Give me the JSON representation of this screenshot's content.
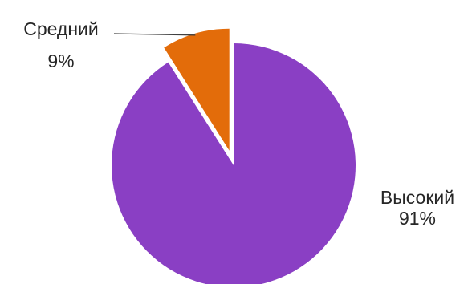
{
  "chart_data": {
    "type": "pie",
    "title": "",
    "legend": "none",
    "slices": [
      {
        "label": "Высокий",
        "value": 91,
        "percent_label": "91%",
        "color": "#8a3fc4",
        "exploded": false
      },
      {
        "label": "Средний",
        "value": 9,
        "percent_label": "9%",
        "color": "#e36c0a",
        "exploded": true
      }
    ]
  }
}
